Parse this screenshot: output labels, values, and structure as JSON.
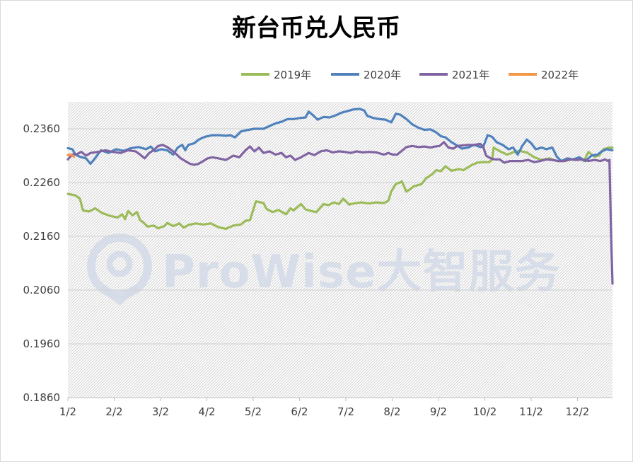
{
  "chart_data": {
    "type": "line",
    "title": "新台币兑人民币",
    "xlabel": "",
    "ylabel": "",
    "ylim": [
      0.186,
      0.241
    ],
    "y_ticks": [
      "0.1860",
      "0.1960",
      "0.2060",
      "0.2160",
      "0.2260",
      "0.2360"
    ],
    "x_ticks": [
      "1/2",
      "2/2",
      "3/2",
      "4/2",
      "5/2",
      "6/2",
      "7/2",
      "8/2",
      "9/2",
      "10/2",
      "11/2",
      "12/2"
    ],
    "x_range_days": [
      0,
      362
    ],
    "legend_position": "top-right",
    "grid": true,
    "watermark": "ProWise大智服务",
    "series": [
      {
        "name": "2019年",
        "color": "#9bbb59",
        "points": [
          [
            0,
            0.2239
          ],
          [
            5,
            0.2236
          ],
          [
            8,
            0.223
          ],
          [
            10,
            0.2208
          ],
          [
            14,
            0.2206
          ],
          [
            18,
            0.2212
          ],
          [
            23,
            0.2203
          ],
          [
            28,
            0.2198
          ],
          [
            33,
            0.2195
          ],
          [
            36,
            0.2201
          ],
          [
            38,
            0.2192
          ],
          [
            40,
            0.2207
          ],
          [
            43,
            0.2199
          ],
          [
            46,
            0.2205
          ],
          [
            48,
            0.219
          ],
          [
            50,
            0.2186
          ],
          [
            53,
            0.2178
          ],
          [
            57,
            0.218
          ],
          [
            60,
            0.2175
          ],
          [
            64,
            0.2179
          ],
          [
            66,
            0.2185
          ],
          [
            70,
            0.2179
          ],
          [
            74,
            0.2184
          ],
          [
            77,
            0.2176
          ],
          [
            80,
            0.2181
          ],
          [
            85,
            0.2184
          ],
          [
            90,
            0.2182
          ],
          [
            95,
            0.2184
          ],
          [
            100,
            0.2177
          ],
          [
            105,
            0.2174
          ],
          [
            110,
            0.218
          ],
          [
            115,
            0.2182
          ],
          [
            118,
            0.2189
          ],
          [
            121,
            0.219
          ],
          [
            125,
            0.2225
          ],
          [
            130,
            0.2222
          ],
          [
            132,
            0.2211
          ],
          [
            136,
            0.2205
          ],
          [
            140,
            0.2209
          ],
          [
            145,
            0.2201
          ],
          [
            148,
            0.2212
          ],
          [
            150,
            0.2208
          ],
          [
            155,
            0.222
          ],
          [
            158,
            0.221
          ],
          [
            162,
            0.2207
          ],
          [
            165,
            0.2205
          ],
          [
            170,
            0.222
          ],
          [
            173,
            0.2218
          ],
          [
            177,
            0.2223
          ],
          [
            180,
            0.222
          ],
          [
            183,
            0.223
          ],
          [
            187,
            0.2219
          ],
          [
            190,
            0.2221
          ],
          [
            195,
            0.2223
          ],
          [
            200,
            0.2221
          ],
          [
            205,
            0.2223
          ],
          [
            210,
            0.2222
          ],
          [
            213,
            0.2226
          ],
          [
            215,
            0.2244
          ],
          [
            218,
            0.2257
          ],
          [
            222,
            0.2262
          ],
          [
            225,
            0.2243
          ],
          [
            230,
            0.2253
          ],
          [
            235,
            0.2257
          ],
          [
            238,
            0.2268
          ],
          [
            242,
            0.2275
          ],
          [
            245,
            0.2283
          ],
          [
            248,
            0.2281
          ],
          [
            251,
            0.229
          ],
          [
            255,
            0.2282
          ],
          [
            260,
            0.2285
          ],
          [
            263,
            0.2283
          ],
          [
            268,
            0.2292
          ],
          [
            272,
            0.2297
          ],
          [
            276,
            0.2298
          ],
          [
            280,
            0.2298
          ],
          [
            282,
            0.2302
          ],
          [
            283,
            0.2325
          ],
          [
            288,
            0.2317
          ],
          [
            292,
            0.2312
          ],
          [
            296,
            0.2316
          ],
          [
            300,
            0.2319
          ],
          [
            305,
            0.2316
          ],
          [
            310,
            0.2307
          ],
          [
            315,
            0.2302
          ],
          [
            320,
            0.2305
          ],
          [
            325,
            0.23
          ],
          [
            330,
            0.23
          ],
          [
            335,
            0.2303
          ],
          [
            340,
            0.2305
          ],
          [
            343,
            0.23
          ],
          [
            346,
            0.2317
          ],
          [
            350,
            0.2308
          ],
          [
            353,
            0.231
          ],
          [
            356,
            0.2322
          ],
          [
            360,
            0.2325
          ],
          [
            362,
            0.2325
          ]
        ]
      },
      {
        "name": "2020年",
        "color": "#4f81bd",
        "points": [
          [
            0,
            0.2324
          ],
          [
            3,
            0.2322
          ],
          [
            5,
            0.2312
          ],
          [
            8,
            0.2308
          ],
          [
            12,
            0.2305
          ],
          [
            15,
            0.2295
          ],
          [
            18,
            0.2305
          ],
          [
            22,
            0.232
          ],
          [
            27,
            0.2315
          ],
          [
            32,
            0.2322
          ],
          [
            37,
            0.2319
          ],
          [
            42,
            0.2324
          ],
          [
            47,
            0.2326
          ],
          [
            52,
            0.2322
          ],
          [
            55,
            0.2327
          ],
          [
            58,
            0.2318
          ],
          [
            62,
            0.2322
          ],
          [
            66,
            0.232
          ],
          [
            70,
            0.2312
          ],
          [
            73,
            0.2325
          ],
          [
            76,
            0.233
          ],
          [
            78,
            0.232
          ],
          [
            80,
            0.233
          ],
          [
            84,
            0.2333
          ],
          [
            87,
            0.234
          ],
          [
            91,
            0.2345
          ],
          [
            96,
            0.2348
          ],
          [
            101,
            0.2348
          ],
          [
            105,
            0.2347
          ],
          [
            108,
            0.2348
          ],
          [
            111,
            0.2344
          ],
          [
            115,
            0.2355
          ],
          [
            120,
            0.2358
          ],
          [
            124,
            0.236
          ],
          [
            130,
            0.236
          ],
          [
            134,
            0.2365
          ],
          [
            138,
            0.237
          ],
          [
            142,
            0.2373
          ],
          [
            146,
            0.2378
          ],
          [
            150,
            0.2378
          ],
          [
            154,
            0.238
          ],
          [
            158,
            0.2381
          ],
          [
            160,
            0.2392
          ],
          [
            163,
            0.2385
          ],
          [
            166,
            0.2377
          ],
          [
            170,
            0.2382
          ],
          [
            174,
            0.2381
          ],
          [
            178,
            0.2385
          ],
          [
            182,
            0.239
          ],
          [
            186,
            0.2393
          ],
          [
            190,
            0.2396
          ],
          [
            194,
            0.2397
          ],
          [
            197,
            0.2394
          ],
          [
            199,
            0.2384
          ],
          [
            203,
            0.238
          ],
          [
            207,
            0.2378
          ],
          [
            211,
            0.2377
          ],
          [
            215,
            0.2372
          ],
          [
            218,
            0.2388
          ],
          [
            221,
            0.2386
          ],
          [
            225,
            0.2378
          ],
          [
            229,
            0.2368
          ],
          [
            233,
            0.2362
          ],
          [
            237,
            0.2358
          ],
          [
            241,
            0.2359
          ],
          [
            245,
            0.2353
          ],
          [
            248,
            0.2346
          ],
          [
            251,
            0.2344
          ],
          [
            255,
            0.2335
          ],
          [
            258,
            0.233
          ],
          [
            262,
            0.2323
          ],
          [
            266,
            0.2325
          ],
          [
            270,
            0.233
          ],
          [
            274,
            0.2326
          ],
          [
            276,
            0.2326
          ],
          [
            279,
            0.2348
          ],
          [
            282,
            0.2345
          ],
          [
            285,
            0.2335
          ],
          [
            289,
            0.233
          ],
          [
            293,
            0.2322
          ],
          [
            296,
            0.2325
          ],
          [
            299,
            0.2312
          ],
          [
            302,
            0.2328
          ],
          [
            305,
            0.234
          ],
          [
            308,
            0.2333
          ],
          [
            311,
            0.2322
          ],
          [
            315,
            0.2325
          ],
          [
            318,
            0.2322
          ],
          [
            322,
            0.2325
          ],
          [
            325,
            0.2308
          ],
          [
            328,
            0.23
          ],
          [
            332,
            0.2305
          ],
          [
            336,
            0.2303
          ],
          [
            340,
            0.2307
          ],
          [
            344,
            0.23
          ],
          [
            348,
            0.231
          ],
          [
            352,
            0.2312
          ],
          [
            355,
            0.2318
          ],
          [
            358,
            0.2322
          ],
          [
            362,
            0.232
          ]
        ]
      },
      {
        "name": "2021年",
        "color": "#8064a2",
        "points": [
          [
            0,
            0.2303
          ],
          [
            3,
            0.2312
          ],
          [
            6,
            0.2313
          ],
          [
            9,
            0.2317
          ],
          [
            12,
            0.231
          ],
          [
            15,
            0.2315
          ],
          [
            20,
            0.2317
          ],
          [
            25,
            0.232
          ],
          [
            30,
            0.2317
          ],
          [
            35,
            0.2315
          ],
          [
            40,
            0.232
          ],
          [
            45,
            0.2318
          ],
          [
            48,
            0.2312
          ],
          [
            51,
            0.2305
          ],
          [
            54,
            0.2315
          ],
          [
            57,
            0.232
          ],
          [
            60,
            0.2328
          ],
          [
            63,
            0.233
          ],
          [
            66,
            0.2326
          ],
          [
            69,
            0.232
          ],
          [
            72,
            0.2313
          ],
          [
            75,
            0.2305
          ],
          [
            78,
            0.23
          ],
          [
            81,
            0.2295
          ],
          [
            84,
            0.2293
          ],
          [
            87,
            0.2295
          ],
          [
            90,
            0.23
          ],
          [
            93,
            0.2305
          ],
          [
            96,
            0.2307
          ],
          [
            100,
            0.2305
          ],
          [
            105,
            0.2302
          ],
          [
            110,
            0.231
          ],
          [
            114,
            0.2307
          ],
          [
            118,
            0.232
          ],
          [
            121,
            0.2327
          ],
          [
            124,
            0.2318
          ],
          [
            127,
            0.2325
          ],
          [
            130,
            0.2315
          ],
          [
            134,
            0.2318
          ],
          [
            138,
            0.2312
          ],
          [
            142,
            0.2315
          ],
          [
            145,
            0.2307
          ],
          [
            148,
            0.231
          ],
          [
            151,
            0.2302
          ],
          [
            155,
            0.2307
          ],
          [
            160,
            0.2315
          ],
          [
            164,
            0.2311
          ],
          [
            168,
            0.2318
          ],
          [
            172,
            0.232
          ],
          [
            176,
            0.2316
          ],
          [
            180,
            0.2318
          ],
          [
            184,
            0.2317
          ],
          [
            188,
            0.2315
          ],
          [
            192,
            0.2318
          ],
          [
            196,
            0.2316
          ],
          [
            200,
            0.2317
          ],
          [
            205,
            0.2316
          ],
          [
            210,
            0.2312
          ],
          [
            213,
            0.2315
          ],
          [
            216,
            0.2312
          ],
          [
            219,
            0.2312
          ],
          [
            222,
            0.2319
          ],
          [
            225,
            0.2326
          ],
          [
            229,
            0.2328
          ],
          [
            233,
            0.2326
          ],
          [
            237,
            0.2327
          ],
          [
            241,
            0.2325
          ],
          [
            244,
            0.2327
          ],
          [
            247,
            0.2328
          ],
          [
            250,
            0.2335
          ],
          [
            253,
            0.2325
          ],
          [
            256,
            0.2323
          ],
          [
            259,
            0.2328
          ],
          [
            262,
            0.2329
          ],
          [
            266,
            0.233
          ],
          [
            270,
            0.233
          ],
          [
            274,
            0.2332
          ],
          [
            276,
            0.2327
          ],
          [
            278,
            0.231
          ],
          [
            281,
            0.2305
          ],
          [
            284,
            0.2303
          ],
          [
            287,
            0.2303
          ],
          [
            290,
            0.2297
          ],
          [
            294,
            0.23
          ],
          [
            298,
            0.23
          ],
          [
            302,
            0.23
          ],
          [
            306,
            0.2302
          ],
          [
            310,
            0.2298
          ],
          [
            314,
            0.23
          ],
          [
            318,
            0.2303
          ],
          [
            322,
            0.2302
          ],
          [
            326,
            0.23
          ],
          [
            330,
            0.23
          ],
          [
            334,
            0.2303
          ],
          [
            338,
            0.2302
          ],
          [
            342,
            0.2303
          ],
          [
            346,
            0.23
          ],
          [
            350,
            0.2302
          ],
          [
            354,
            0.23
          ],
          [
            357,
            0.2303
          ],
          [
            359,
            0.23
          ],
          [
            360,
            0.2302
          ],
          [
            361,
            0.217
          ],
          [
            362,
            0.2072
          ]
        ]
      },
      {
        "name": "2022年",
        "color": "#f79646",
        "points": [
          [
            0,
            0.2311
          ],
          [
            2,
            0.2312
          ],
          [
            4,
            0.2308
          ]
        ]
      }
    ]
  }
}
